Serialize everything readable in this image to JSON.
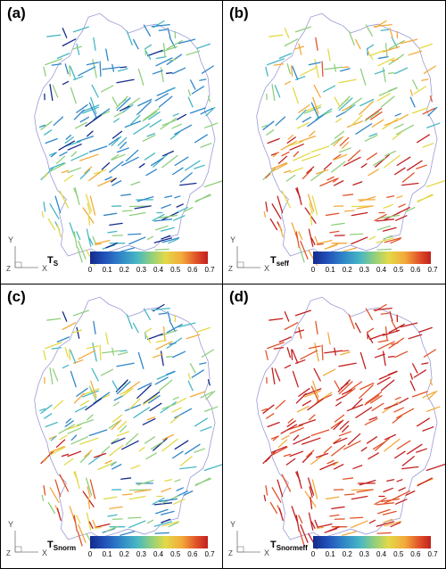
{
  "panels": [
    {
      "label": "(a)",
      "legend_title": "T",
      "legend_sub": "S",
      "mode": "ts"
    },
    {
      "label": "(b)",
      "legend_title": "T",
      "legend_sub": "seff",
      "mode": "seff"
    },
    {
      "label": "(c)",
      "legend_title": "T",
      "legend_sub": "Snorm",
      "mode": "snorm"
    },
    {
      "label": "(d)",
      "legend_title": "T",
      "legend_sub": "Snormeff",
      "mode": "snormeff"
    }
  ],
  "axis_labels": {
    "y": "Y",
    "x": "X",
    "z": "Z"
  },
  "colorbar": {
    "min": 0,
    "max": 0.7,
    "tick_labels": [
      "0",
      "0.1",
      "0.2",
      "0.3",
      "0.4",
      "0.5",
      "0.6",
      "0.7"
    ],
    "colors": [
      "#142b8c",
      "#2f86c9",
      "#47b7c4",
      "#8fcf7d",
      "#e3d948",
      "#f3a93a",
      "#e2532a",
      "#c21f1f"
    ]
  },
  "colors": {
    "border": "#9a9ad6",
    "panel_border": "#000000"
  }
}
